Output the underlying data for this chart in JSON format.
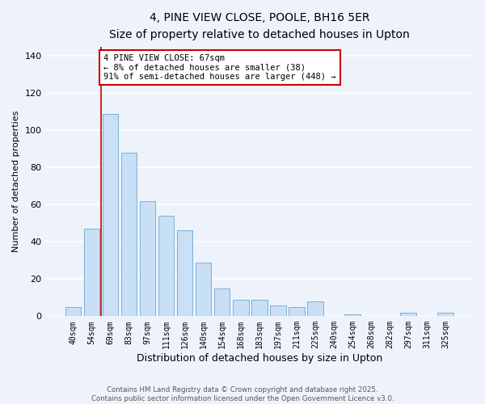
{
  "title": "4, PINE VIEW CLOSE, POOLE, BH16 5ER",
  "subtitle": "Size of property relative to detached houses in Upton",
  "xlabel": "Distribution of detached houses by size in Upton",
  "ylabel": "Number of detached properties",
  "bar_labels": [
    "40sqm",
    "54sqm",
    "69sqm",
    "83sqm",
    "97sqm",
    "111sqm",
    "126sqm",
    "140sqm",
    "154sqm",
    "168sqm",
    "183sqm",
    "197sqm",
    "211sqm",
    "225sqm",
    "240sqm",
    "254sqm",
    "268sqm",
    "282sqm",
    "297sqm",
    "311sqm",
    "325sqm"
  ],
  "bar_values": [
    5,
    47,
    109,
    88,
    62,
    54,
    46,
    29,
    15,
    9,
    9,
    6,
    5,
    8,
    0,
    1,
    0,
    0,
    2,
    0,
    2
  ],
  "bar_color": "#c8dff5",
  "bar_edge_color": "#7ab0d8",
  "vline_x": 1.5,
  "vline_color": "#cc0000",
  "annotation_text": "4 PINE VIEW CLOSE: 67sqm\n← 8% of detached houses are smaller (38)\n91% of semi-detached houses are larger (448) →",
  "annotation_box_color": "#ffffff",
  "annotation_box_edge": "#cc0000",
  "ylim": [
    0,
    145
  ],
  "yticks": [
    0,
    20,
    40,
    60,
    80,
    100,
    120,
    140
  ],
  "footer1": "Contains HM Land Registry data © Crown copyright and database right 2025.",
  "footer2": "Contains public sector information licensed under the Open Government Licence v3.0.",
  "bg_color": "#eef3fb",
  "grid_color": "#ffffff"
}
